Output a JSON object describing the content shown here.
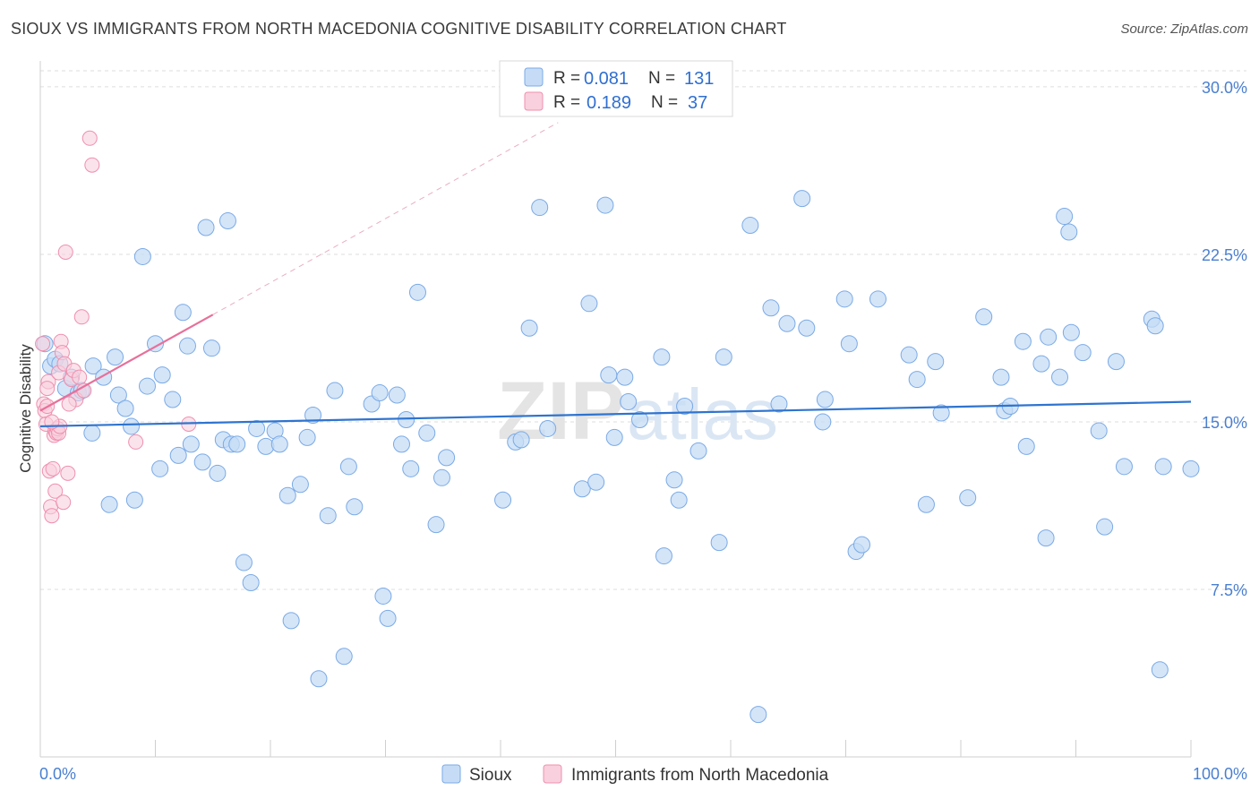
{
  "header": {
    "title": "SIOUX VS IMMIGRANTS FROM NORTH MACEDONIA COGNITIVE DISABILITY CORRELATION CHART",
    "source": "Source: ZipAtlas.com"
  },
  "watermark": {
    "zip": "ZIP",
    "atlas": "atlas"
  },
  "legend_top": {
    "rows": [
      {
        "r_label": "R =",
        "r_value": "0.081",
        "n_label": "N =",
        "n_value": "131"
      },
      {
        "r_label": "R =",
        "r_value": "0.189",
        "n_label": "N =",
        "n_value": "37"
      }
    ]
  },
  "chart_data": {
    "type": "scatter",
    "title": "SIOUX VS IMMIGRANTS FROM NORTH MACEDONIA COGNITIVE DISABILITY CORRELATION CHART",
    "xlabel": "",
    "ylabel": "Cognitive Disability",
    "xlim": [
      0,
      100
    ],
    "ylim": [
      0,
      31
    ],
    "x_tick_labels": [
      "0.0%",
      "100.0%"
    ],
    "y_ticks": [
      7.5,
      15.0,
      22.5,
      30.0
    ],
    "y_tick_labels": [
      "7.5%",
      "15.0%",
      "22.5%",
      "30.0%"
    ],
    "grid": "horizontal dashed",
    "legend_position": "bottom",
    "colors": {
      "sioux": "#7aaae6",
      "sioux_fill": "#c6dcf6",
      "nm": "#ef8fae",
      "nm_fill": "#f9d0dd",
      "sioux_line": "#2f74cf",
      "nm_line": "#e8709a"
    },
    "series": [
      {
        "name": "Sioux",
        "R": 0.081,
        "N": 131,
        "trend": {
          "x": [
            0,
            100
          ],
          "y": [
            14.8,
            15.9
          ]
        },
        "points": [
          [
            0.4,
            18.5
          ],
          [
            0.9,
            17.5
          ],
          [
            1.3,
            17.8
          ],
          [
            1.7,
            17.6
          ],
          [
            2.2,
            16.5
          ],
          [
            2.7,
            17.0
          ],
          [
            3.3,
            16.3
          ],
          [
            3.6,
            16.4
          ],
          [
            4.5,
            14.5
          ],
          [
            4.6,
            17.5
          ],
          [
            5.5,
            17.0
          ],
          [
            6.0,
            11.3
          ],
          [
            6.5,
            17.9
          ],
          [
            6.8,
            16.2
          ],
          [
            7.4,
            15.6
          ],
          [
            7.9,
            14.8
          ],
          [
            8.2,
            11.5
          ],
          [
            8.9,
            22.4
          ],
          [
            9.3,
            16.6
          ],
          [
            10.0,
            18.5
          ],
          [
            10.4,
            12.9
          ],
          [
            10.6,
            17.1
          ],
          [
            11.5,
            16.0
          ],
          [
            12.0,
            13.5
          ],
          [
            12.4,
            19.9
          ],
          [
            12.8,
            18.4
          ],
          [
            13.1,
            14.0
          ],
          [
            14.1,
            13.2
          ],
          [
            14.4,
            23.7
          ],
          [
            14.9,
            18.3
          ],
          [
            15.4,
            12.7
          ],
          [
            15.9,
            14.2
          ],
          [
            16.3,
            24.0
          ],
          [
            16.6,
            14.0
          ],
          [
            17.1,
            14.0
          ],
          [
            17.7,
            8.7
          ],
          [
            18.3,
            7.8
          ],
          [
            18.8,
            14.7
          ],
          [
            19.6,
            13.9
          ],
          [
            20.4,
            14.6
          ],
          [
            20.8,
            14.0
          ],
          [
            21.5,
            11.7
          ],
          [
            21.8,
            6.1
          ],
          [
            22.6,
            12.2
          ],
          [
            23.2,
            14.3
          ],
          [
            23.7,
            15.3
          ],
          [
            24.2,
            3.5
          ],
          [
            25.0,
            10.8
          ],
          [
            25.6,
            16.4
          ],
          [
            26.4,
            4.5
          ],
          [
            26.8,
            13.0
          ],
          [
            27.3,
            11.2
          ],
          [
            28.8,
            15.8
          ],
          [
            29.5,
            16.3
          ],
          [
            29.8,
            7.2
          ],
          [
            30.2,
            6.2
          ],
          [
            31.0,
            16.2
          ],
          [
            31.4,
            14.0
          ],
          [
            31.8,
            15.1
          ],
          [
            32.2,
            12.9
          ],
          [
            32.8,
            20.8
          ],
          [
            33.6,
            14.5
          ],
          [
            34.4,
            10.4
          ],
          [
            34.9,
            12.5
          ],
          [
            35.3,
            13.4
          ],
          [
            40.2,
            11.5
          ],
          [
            41.3,
            14.1
          ],
          [
            41.8,
            14.2
          ],
          [
            42.5,
            19.2
          ],
          [
            43.4,
            24.6
          ],
          [
            44.1,
            14.7
          ],
          [
            47.1,
            12.0
          ],
          [
            47.7,
            20.3
          ],
          [
            48.3,
            12.3
          ],
          [
            49.1,
            24.7
          ],
          [
            49.4,
            17.1
          ],
          [
            49.9,
            14.3
          ],
          [
            50.8,
            17.0
          ],
          [
            51.1,
            15.9
          ],
          [
            52.1,
            15.1
          ],
          [
            54.0,
            17.9
          ],
          [
            54.2,
            9.0
          ],
          [
            55.1,
            12.4
          ],
          [
            55.5,
            11.5
          ],
          [
            56.0,
            15.7
          ],
          [
            57.2,
            13.7
          ],
          [
            59.0,
            9.6
          ],
          [
            59.4,
            17.9
          ],
          [
            61.7,
            23.8
          ],
          [
            62.4,
            1.9
          ],
          [
            63.5,
            20.1
          ],
          [
            64.2,
            15.8
          ],
          [
            64.9,
            19.4
          ],
          [
            66.2,
            25.0
          ],
          [
            66.6,
            19.2
          ],
          [
            68.0,
            15.0
          ],
          [
            68.2,
            16.0
          ],
          [
            69.9,
            20.5
          ],
          [
            70.3,
            18.5
          ],
          [
            70.9,
            9.2
          ],
          [
            71.4,
            9.5
          ],
          [
            72.8,
            20.5
          ],
          [
            75.5,
            18.0
          ],
          [
            76.2,
            16.9
          ],
          [
            77.0,
            11.3
          ],
          [
            77.8,
            17.7
          ],
          [
            78.3,
            15.4
          ],
          [
            80.6,
            11.6
          ],
          [
            82.0,
            19.7
          ],
          [
            83.5,
            17.0
          ],
          [
            83.8,
            15.5
          ],
          [
            84.3,
            15.7
          ],
          [
            85.4,
            18.6
          ],
          [
            85.7,
            13.9
          ],
          [
            87.0,
            17.6
          ],
          [
            87.4,
            9.8
          ],
          [
            87.6,
            18.8
          ],
          [
            88.6,
            17.0
          ],
          [
            89.0,
            24.2
          ],
          [
            89.4,
            23.5
          ],
          [
            89.6,
            19.0
          ],
          [
            90.6,
            18.1
          ],
          [
            92.0,
            14.6
          ],
          [
            92.5,
            10.3
          ],
          [
            93.5,
            17.7
          ],
          [
            94.2,
            13.0
          ],
          [
            96.6,
            19.6
          ],
          [
            96.9,
            19.3
          ],
          [
            97.3,
            3.9
          ],
          [
            97.6,
            13.0
          ],
          [
            100.0,
            12.9
          ]
        ]
      },
      {
        "name": "Immigrants from North Macedonia",
        "R": 0.189,
        "N": 37,
        "trend": {
          "x": [
            0,
            15
          ],
          "y": [
            15.5,
            19.8
          ]
        },
        "trend_extension": {
          "x": [
            15,
            45
          ],
          "y": [
            19.8,
            28.4
          ]
        },
        "points": [
          [
            0.3,
            15.8
          ],
          [
            0.4,
            15.5
          ],
          [
            0.5,
            14.9
          ],
          [
            0.6,
            15.7
          ],
          [
            0.7,
            16.8
          ],
          [
            0.8,
            12.8
          ],
          [
            0.9,
            11.2
          ],
          [
            1.0,
            10.8
          ],
          [
            1.1,
            12.9
          ],
          [
            1.2,
            14.4
          ],
          [
            1.3,
            14.6
          ],
          [
            1.3,
            11.9
          ],
          [
            1.4,
            14.5
          ],
          [
            1.5,
            14.7
          ],
          [
            1.6,
            14.5
          ],
          [
            1.6,
            17.2
          ],
          [
            1.7,
            14.8
          ],
          [
            1.8,
            18.6
          ],
          [
            1.9,
            18.1
          ],
          [
            2.0,
            11.4
          ],
          [
            2.1,
            17.6
          ],
          [
            2.2,
            22.6
          ],
          [
            2.4,
            12.7
          ],
          [
            2.7,
            16.9
          ],
          [
            2.9,
            17.3
          ],
          [
            3.1,
            16.0
          ],
          [
            3.4,
            17.0
          ],
          [
            3.6,
            19.7
          ],
          [
            4.3,
            27.7
          ],
          [
            4.5,
            26.5
          ],
          [
            8.3,
            14.1
          ],
          [
            12.9,
            14.9
          ],
          [
            0.2,
            18.5
          ],
          [
            0.6,
            16.5
          ],
          [
            1.0,
            15.0
          ],
          [
            2.5,
            15.8
          ],
          [
            3.8,
            16.4
          ]
        ]
      }
    ]
  },
  "legend_bottom": {
    "items": [
      {
        "label": "Sioux"
      },
      {
        "label": "Immigrants from North Macedonia"
      }
    ]
  }
}
